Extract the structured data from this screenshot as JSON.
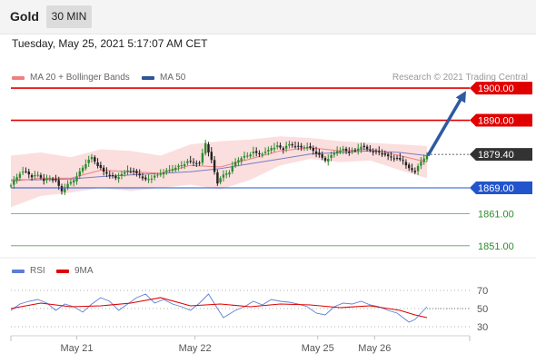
{
  "header": {
    "instrument": "Gold",
    "timeframe": "30 MIN",
    "datetime": "Tuesday, May 25, 2021 5:17:07 AM CET",
    "credit": "Research © 2021 Trading Central"
  },
  "legend": {
    "ma20_label": "MA 20 + Bollinger Bands",
    "ma20_color": "#f08080",
    "ma50_label": "MA 50",
    "ma50_color": "#2e5596",
    "rsi_label": "RSI",
    "rsi_color": "#5b7fd6",
    "ma9_label": "9MA",
    "ma9_color": "#e00000"
  },
  "chart_data": [
    {
      "type": "candlestick",
      "title": "",
      "ylim": [
        1847,
        1902
      ],
      "x_ticks": [
        "May 21",
        "May 22",
        "May 25",
        "May 26"
      ],
      "colors": {
        "up": "#2e8b2e",
        "down": "#222222",
        "bollinger_fill": "#fbdede",
        "ma20": "#f08080",
        "ma50": "#7a7fc4"
      },
      "current_price": {
        "label": "1879.40",
        "value": 1879.4
      },
      "levels": [
        {
          "label": "1900.00",
          "value": 1900.0,
          "color": "#e00000",
          "style": "tag"
        },
        {
          "label": "1890.00",
          "value": 1890.0,
          "color": "#e00000",
          "style": "tag"
        },
        {
          "label": "1869.00",
          "value": 1869.0,
          "color": "#2255cc",
          "style": "tag"
        },
        {
          "label": "1861.00",
          "value": 1861.0,
          "color": "#2e8b2e",
          "style": "text"
        },
        {
          "label": "1851.00",
          "value": 1851.0,
          "color": "#2e8b2e",
          "style": "text"
        }
      ],
      "projection": {
        "from": 1879.0,
        "to": 1900.0,
        "color": "#2e5aa0"
      },
      "close_path": [
        [
          0,
          1870.0
        ],
        [
          6,
          1873.5
        ],
        [
          10,
          1874.0
        ],
        [
          14,
          1872.5
        ],
        [
          18,
          1873.0
        ],
        [
          22,
          1871.5
        ],
        [
          26,
          1872.0
        ],
        [
          30,
          1871.0
        ],
        [
          34,
          1868.0
        ],
        [
          38,
          1870.0
        ],
        [
          42,
          1871.5
        ],
        [
          46,
          1874.0
        ],
        [
          50,
          1876.5
        ],
        [
          54,
          1878.5
        ],
        [
          58,
          1876.0
        ],
        [
          62,
          1874.0
        ],
        [
          66,
          1873.0
        ],
        [
          70,
          1872.0
        ],
        [
          74,
          1873.0
        ],
        [
          78,
          1874.5
        ],
        [
          82,
          1874.0
        ],
        [
          86,
          1873.0
        ],
        [
          90,
          1871.5
        ],
        [
          94,
          1872.0
        ],
        [
          98,
          1873.0
        ],
        [
          102,
          1874.0
        ],
        [
          106,
          1874.5
        ],
        [
          110,
          1875.5
        ],
        [
          114,
          1876.0
        ],
        [
          118,
          1877.0
        ],
        [
          122,
          1877.0
        ],
        [
          126,
          1876.5
        ],
        [
          130,
          1883.0
        ],
        [
          134,
          1877.5
        ],
        [
          138,
          1870.5
        ],
        [
          142,
          1873.0
        ],
        [
          146,
          1874.0
        ],
        [
          150,
          1877.0
        ],
        [
          154,
          1878.5
        ],
        [
          158,
          1879.0
        ],
        [
          162,
          1880.0
        ],
        [
          166,
          1879.5
        ],
        [
          170,
          1880.0
        ],
        [
          174,
          1881.5
        ],
        [
          178,
          1882.0
        ],
        [
          182,
          1881.0
        ],
        [
          186,
          1882.5
        ],
        [
          190,
          1882.0
        ],
        [
          194,
          1881.5
        ],
        [
          198,
          1882.0
        ],
        [
          202,
          1880.5
        ],
        [
          206,
          1879.0
        ],
        [
          210,
          1877.5
        ],
        [
          214,
          1879.0
        ],
        [
          218,
          1880.5
        ],
        [
          222,
          1881.0
        ],
        [
          226,
          1880.0
        ],
        [
          230,
          1880.5
        ],
        [
          234,
          1882.0
        ],
        [
          238,
          1881.0
        ],
        [
          242,
          1880.5
        ],
        [
          246,
          1880.0
        ],
        [
          250,
          1879.0
        ],
        [
          254,
          1878.5
        ],
        [
          258,
          1878.0
        ],
        [
          262,
          1877.5
        ],
        [
          266,
          1875.0
        ],
        [
          270,
          1874.0
        ],
        [
          274,
          1877.0
        ],
        [
          278,
          1879.4
        ]
      ],
      "ma20": [
        [
          0,
          1871.0
        ],
        [
          20,
          1872.0
        ],
        [
          40,
          1872.0
        ],
        [
          60,
          1874.5
        ],
        [
          80,
          1874.0
        ],
        [
          100,
          1873.5
        ],
        [
          120,
          1876.0
        ],
        [
          140,
          1875.5
        ],
        [
          160,
          1878.0
        ],
        [
          180,
          1880.5
        ],
        [
          200,
          1881.5
        ],
        [
          220,
          1880.5
        ],
        [
          240,
          1881.0
        ],
        [
          260,
          1879.0
        ],
        [
          278,
          1877.0
        ]
      ],
      "ma50": [
        [
          0,
          1871.5
        ],
        [
          20,
          1871.5
        ],
        [
          40,
          1871.8
        ],
        [
          60,
          1872.5
        ],
        [
          80,
          1873.0
        ],
        [
          100,
          1873.5
        ],
        [
          120,
          1874.0
        ],
        [
          140,
          1875.0
        ],
        [
          160,
          1876.5
        ],
        [
          180,
          1878.0
        ],
        [
          200,
          1879.5
        ],
        [
          220,
          1880.0
        ],
        [
          240,
          1880.5
        ],
        [
          260,
          1880.0
        ],
        [
          278,
          1879.0
        ]
      ],
      "bollinger_upper": [
        [
          0,
          1879.0
        ],
        [
          20,
          1880.0
        ],
        [
          40,
          1878.5
        ],
        [
          60,
          1881.0
        ],
        [
          80,
          1880.5
        ],
        [
          100,
          1879.0
        ],
        [
          120,
          1882.5
        ],
        [
          140,
          1883.5
        ],
        [
          160,
          1884.0
        ],
        [
          180,
          1885.0
        ],
        [
          200,
          1884.5
        ],
        [
          220,
          1883.5
        ],
        [
          240,
          1883.0
        ],
        [
          260,
          1882.5
        ],
        [
          278,
          1882.0
        ]
      ],
      "bollinger_lower": [
        [
          0,
          1863.0
        ],
        [
          20,
          1866.5
        ],
        [
          40,
          1867.5
        ],
        [
          60,
          1869.0
        ],
        [
          80,
          1868.0
        ],
        [
          100,
          1869.0
        ],
        [
          120,
          1870.0
        ],
        [
          140,
          1868.5
        ],
        [
          160,
          1871.5
        ],
        [
          180,
          1876.0
        ],
        [
          200,
          1878.0
        ],
        [
          220,
          1877.0
        ],
        [
          240,
          1877.5
        ],
        [
          260,
          1874.5
        ],
        [
          278,
          1872.0
        ]
      ]
    },
    {
      "type": "line",
      "title": "",
      "ylim": [
        22,
        78
      ],
      "y_ticks": [
        "70",
        "50",
        "30"
      ],
      "series": [
        {
          "name": "RSI",
          "color": "#5b7fd6",
          "points": [
            [
              0,
              48
            ],
            [
              6,
              55
            ],
            [
              12,
              58
            ],
            [
              18,
              60
            ],
            [
              24,
              56
            ],
            [
              30,
              48
            ],
            [
              36,
              55
            ],
            [
              42,
              52
            ],
            [
              48,
              46
            ],
            [
              54,
              55
            ],
            [
              60,
              62
            ],
            [
              66,
              58
            ],
            [
              72,
              48
            ],
            [
              78,
              55
            ],
            [
              84,
              62
            ],
            [
              90,
              66
            ],
            [
              96,
              56
            ],
            [
              102,
              60
            ],
            [
              108,
              55
            ],
            [
              114,
              52
            ],
            [
              120,
              48
            ],
            [
              126,
              56
            ],
            [
              132,
              66
            ],
            [
              138,
              50
            ],
            [
              142,
              40
            ],
            [
              146,
              44
            ],
            [
              150,
              48
            ],
            [
              156,
              52
            ],
            [
              162,
              58
            ],
            [
              168,
              54
            ],
            [
              174,
              60
            ],
            [
              180,
              58
            ],
            [
              186,
              57
            ],
            [
              192,
              55
            ],
            [
              198,
              52
            ],
            [
              204,
              45
            ],
            [
              210,
              43
            ],
            [
              216,
              52
            ],
            [
              222,
              56
            ],
            [
              228,
              55
            ],
            [
              234,
              58
            ],
            [
              240,
              54
            ],
            [
              246,
              52
            ],
            [
              252,
              48
            ],
            [
              258,
              45
            ],
            [
              262,
              40
            ],
            [
              266,
              35
            ],
            [
              270,
              38
            ],
            [
              274,
              45
            ],
            [
              278,
              52
            ]
          ]
        },
        {
          "name": "9MA",
          "color": "#e00000",
          "points": [
            [
              0,
              50
            ],
            [
              20,
              56
            ],
            [
              40,
              52
            ],
            [
              60,
              53
            ],
            [
              80,
              56
            ],
            [
              100,
              62
            ],
            [
              120,
              53
            ],
            [
              140,
              55
            ],
            [
              160,
              52
            ],
            [
              180,
              55
            ],
            [
              200,
              54
            ],
            [
              220,
              51
            ],
            [
              240,
              53
            ],
            [
              260,
              48
            ],
            [
              270,
              43
            ],
            [
              278,
              40
            ]
          ]
        }
      ]
    }
  ]
}
